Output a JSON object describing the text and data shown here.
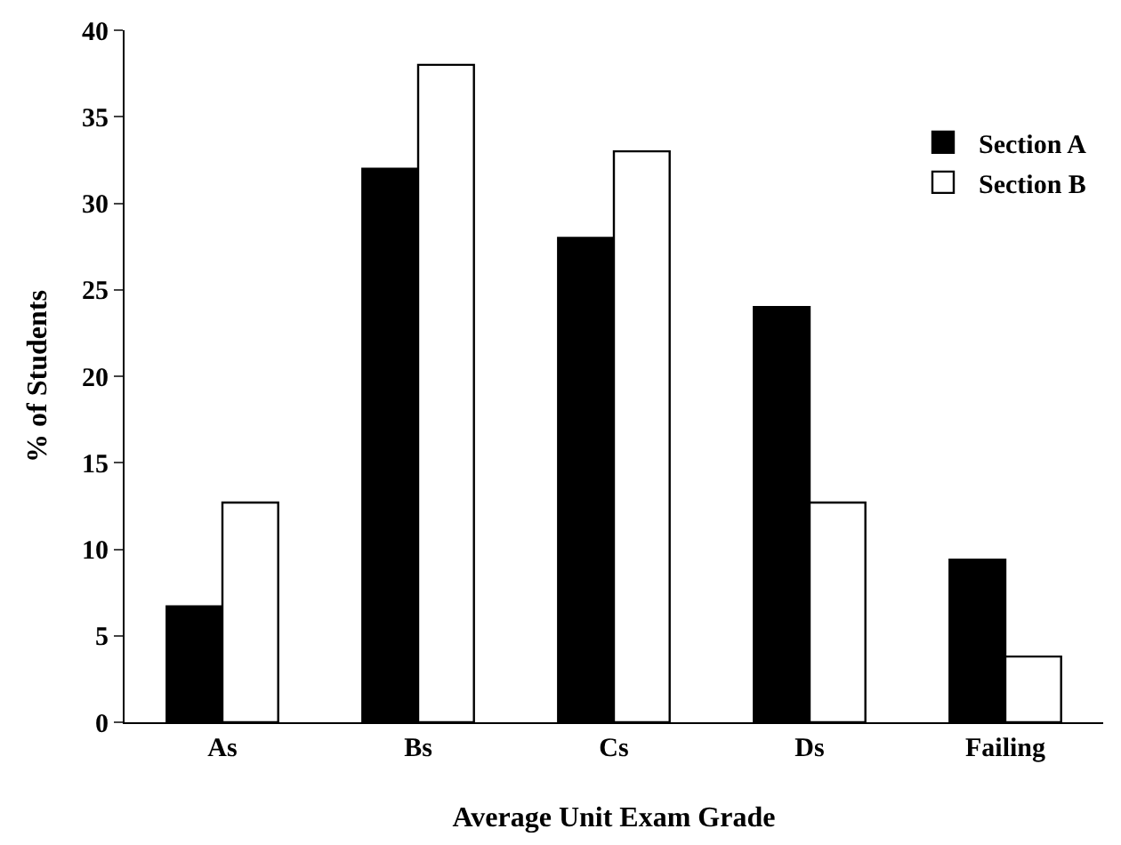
{
  "chart_data": {
    "type": "bar",
    "xlabel": "Average Unit Exam Grade",
    "ylabel": "% of Students",
    "categories": [
      "As",
      "Bs",
      "Cs",
      "Ds",
      "Failing"
    ],
    "series": [
      {
        "name": "Section A",
        "color": "#000000",
        "values": [
          6.7,
          32,
          28,
          24,
          9.4
        ]
      },
      {
        "name": "Section B",
        "color": "#ffffff",
        "values": [
          12.7,
          38,
          33,
          12.7,
          3.8
        ]
      }
    ],
    "ylim": [
      0,
      40
    ],
    "yticks": [
      0,
      5,
      10,
      15,
      20,
      25,
      30,
      35,
      40
    ],
    "legend": "top right"
  }
}
